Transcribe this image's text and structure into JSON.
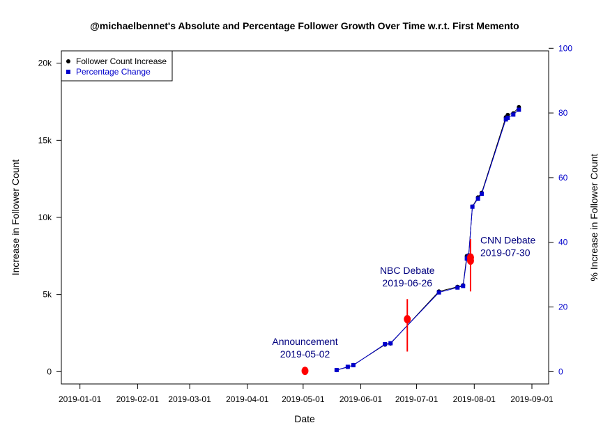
{
  "chart_data": {
    "type": "line",
    "title": "@michaelbennet's Absolute and Percentage Follower Growth Over Time w.r.t. First Memento",
    "xlabel": "Date",
    "ylabel_left": "Increase in Follower Count",
    "ylabel_right": "% Increase in Follower Count",
    "x_ticks": [
      "2019-01-01",
      "2019-02-01",
      "2019-03-01",
      "2019-04-01",
      "2019-05-01",
      "2019-06-01",
      "2019-07-01",
      "2019-08-01",
      "2019-09-01"
    ],
    "xlim": [
      "2018-12-22",
      "2019-09-10"
    ],
    "y_left_ticks": [
      0,
      5000,
      10000,
      15000,
      20000
    ],
    "y_left_tick_labels": [
      "0",
      "5k",
      "10k",
      "15k",
      "20k"
    ],
    "ylim_left": [
      -800,
      20800
    ],
    "y_right_ticks": [
      0,
      20,
      40,
      60,
      80,
      100
    ],
    "y_right_tick_labels": [
      "0",
      "20",
      "40",
      "60",
      "80",
      "100"
    ],
    "ylim_right": [
      -3.8,
      99.2
    ],
    "legend": {
      "position": "top-left",
      "entries": [
        {
          "label": "Follower Count Increase",
          "color": "#000000",
          "marker": "circle"
        },
        {
          "label": "Percentage Change",
          "color": "#0000cc",
          "marker": "square"
        }
      ]
    },
    "series": [
      {
        "name": "Follower Count Increase",
        "axis": "left",
        "color": "#000000",
        "marker": "circle",
        "x": [
          "2019-05-19",
          "2019-05-25",
          "2019-05-28",
          "2019-06-14",
          "2019-06-17",
          "2019-07-13",
          "2019-07-23",
          "2019-07-26",
          "2019-07-28",
          "2019-07-29",
          "2019-07-31",
          "2019-08-03",
          "2019-08-05",
          "2019-08-18",
          "2019-08-19",
          "2019-08-22",
          "2019-08-25"
        ],
        "values": [
          100,
          300,
          430,
          1750,
          1820,
          5200,
          5500,
          5600,
          7500,
          7550,
          10700,
          11300,
          11600,
          16500,
          16650,
          16750,
          17150
        ]
      },
      {
        "name": "Percentage Change",
        "axis": "right",
        "color": "#0000cc",
        "marker": "square",
        "x": [
          "2019-05-19",
          "2019-05-25",
          "2019-05-28",
          "2019-06-14",
          "2019-06-17",
          "2019-07-13",
          "2019-07-23",
          "2019-07-26",
          "2019-07-28",
          "2019-07-29",
          "2019-07-31",
          "2019-08-03",
          "2019-08-05",
          "2019-08-18",
          "2019-08-19",
          "2019-08-22",
          "2019-08-25"
        ],
        "values": [
          0.5,
          1.5,
          2.0,
          8.5,
          8.8,
          24.5,
          26.0,
          26.5,
          35.0,
          35.8,
          51.0,
          53.5,
          55.0,
          78.0,
          78.5,
          79.5,
          81.0
        ]
      }
    ],
    "events": [
      {
        "label": "Announcement",
        "date_label": "2019-05-02",
        "x": "2019-05-02",
        "y": 50,
        "bar_low": 50,
        "bar_high": 50
      },
      {
        "label": "NBC Debate",
        "date_label": "2019-06-26",
        "x": "2019-06-26",
        "y": 3400,
        "bar_low": 1300,
        "bar_high": 4700
      },
      {
        "label": "CNN Debate",
        "date_label": "2019-07-30",
        "x": "2019-07-30",
        "y": 7400,
        "bar_low": 5200,
        "bar_high": 8600
      }
    ],
    "event_color": "#ff0000",
    "event_label_color": "#00007f"
  }
}
